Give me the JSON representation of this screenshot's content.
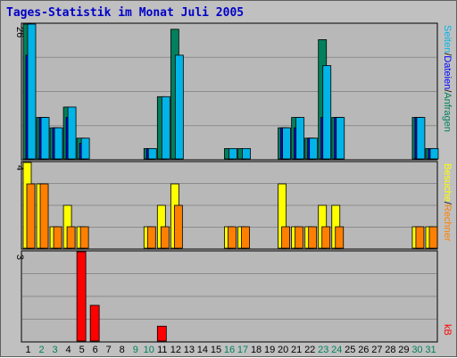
{
  "page": {
    "title": "Tages-Statistik im Monat Juli 2005"
  },
  "chart_data": [
    {
      "type": "bar",
      "name": "top",
      "ymax_label": "26",
      "ylim": [
        0,
        26
      ],
      "series": [
        {
          "name": "Anfragen",
          "color": "#00805c",
          "values": [
            26,
            8,
            6,
            10,
            4,
            0,
            0,
            0,
            0,
            2,
            12,
            25,
            0,
            0,
            0,
            2,
            2,
            0,
            0,
            6,
            8,
            4,
            23,
            8,
            0,
            0,
            0,
            0,
            0,
            8,
            2
          ]
        },
        {
          "name": "Dateien",
          "color": "#0000ff",
          "values": [
            20,
            8,
            6,
            8,
            3,
            0,
            0,
            0,
            0,
            2,
            0,
            0,
            0,
            0,
            0,
            0,
            0,
            0,
            0,
            6,
            6,
            4,
            8,
            8,
            0,
            0,
            0,
            0,
            0,
            8,
            2
          ]
        },
        {
          "name": "Seiten",
          "color": "#00b4e8",
          "values": [
            26,
            8,
            6,
            10,
            4,
            0,
            0,
            0,
            0,
            2,
            12,
            20,
            0,
            0,
            0,
            2,
            2,
            0,
            0,
            6,
            8,
            4,
            18,
            8,
            0,
            0,
            0,
            0,
            0,
            8,
            2
          ]
        }
      ],
      "legend": [
        "Anfragen",
        "Dateien",
        "Seiten"
      ]
    },
    {
      "type": "bar",
      "name": "middle",
      "ymax_label": "4",
      "ylim": [
        0,
        4
      ],
      "series": [
        {
          "name": "Besuche",
          "color": "#ffff00",
          "values": [
            4,
            3,
            1,
            2,
            1,
            0,
            0,
            0,
            0,
            1,
            2,
            3,
            0,
            0,
            0,
            1,
            1,
            0,
            0,
            3,
            1,
            1,
            2,
            2,
            0,
            0,
            0,
            0,
            0,
            1,
            1
          ]
        },
        {
          "name": "Rechner",
          "color": "#ff8000",
          "values": [
            3,
            3,
            1,
            1,
            1,
            0,
            0,
            0,
            0,
            1,
            1,
            2,
            0,
            0,
            0,
            1,
            1,
            0,
            0,
            1,
            1,
            1,
            1,
            1,
            0,
            0,
            0,
            0,
            0,
            1,
            1
          ]
        }
      ],
      "legend": [
        "Besuche",
        "Rechner"
      ]
    },
    {
      "type": "bar",
      "name": "bottom",
      "ymax_label": "3",
      "ylim": [
        0,
        3
      ],
      "series": [
        {
          "name": "kB",
          "color": "#ff0000",
          "values": [
            0,
            0,
            0,
            0,
            3,
            1.2,
            0,
            0,
            0,
            0,
            0.5,
            0,
            0,
            0,
            0,
            0,
            0,
            0,
            0,
            0,
            0,
            0,
            0,
            0,
            0,
            0,
            0,
            0,
            0,
            0,
            0
          ]
        }
      ],
      "legend": [
        "kB"
      ]
    }
  ],
  "x_axis": {
    "days": [
      "1",
      "2",
      "3",
      "4",
      "5",
      "6",
      "7",
      "8",
      "9",
      "10",
      "11",
      "12",
      "13",
      "14",
      "15",
      "16",
      "17",
      "18",
      "19",
      "20",
      "21",
      "22",
      "23",
      "24",
      "25",
      "26",
      "27",
      "28",
      "29",
      "30",
      "31"
    ],
    "weekend_days": [
      2,
      3,
      9,
      10,
      16,
      17,
      23,
      24,
      30,
      31
    ],
    "weekend_color": "#00805c",
    "weekday_color": "#000000"
  },
  "legend_colors": {
    "separator": "#000000"
  }
}
